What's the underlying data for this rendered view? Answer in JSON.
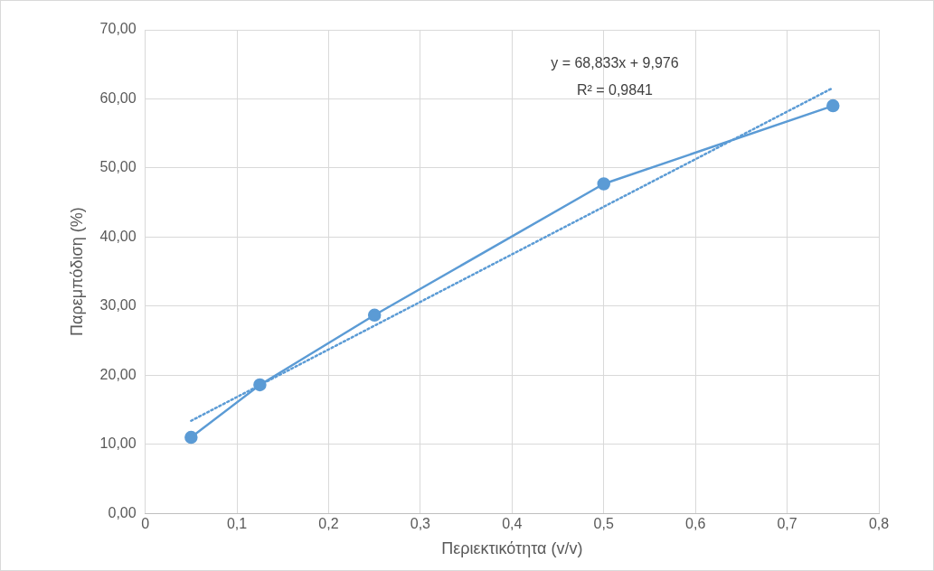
{
  "chart_data": {
    "type": "scatter",
    "xlabel": "Περιεκτικότητα (v/v)",
    "ylabel": "Παρεμπόδιση (%)",
    "xlim": [
      0,
      0.8
    ],
    "xticks": [
      0,
      {
        "value": 0.1,
        "label": "0,1"
      },
      {
        "value": 0.2,
        "label": "0,2"
      },
      {
        "value": 0.3,
        "label": "0,3"
      },
      {
        "value": 0.4,
        "label": "0,4"
      },
      {
        "value": 0.5,
        "label": "0,5"
      },
      {
        "value": 0.6,
        "label": "0,6"
      },
      {
        "value": 0.7,
        "label": "0,7"
      },
      {
        "value": 0.8,
        "label": "0,8"
      }
    ],
    "ylim": [
      0,
      70
    ],
    "yticks": [
      {
        "value": 0,
        "label": "0,00"
      },
      {
        "value": 10,
        "label": "10,00"
      },
      {
        "value": 20,
        "label": "20,00"
      },
      {
        "value": 30,
        "label": "30,00"
      },
      {
        "value": 40,
        "label": "40,00"
      },
      {
        "value": 50,
        "label": "50,00"
      },
      {
        "value": 60,
        "label": "60,00"
      },
      {
        "value": 70,
        "label": "70,00"
      }
    ],
    "grid": true,
    "legend": false,
    "series": [
      {
        "type": "line",
        "color": "#5b9bd5",
        "x": [
          0.05,
          0.125,
          0.25,
          0.5,
          0.75
        ],
        "values": [
          11.0,
          18.6,
          28.7,
          47.7,
          59.0
        ],
        "marker": "circle",
        "line_style": "solid"
      },
      {
        "type": "line",
        "color": "#5b9bd5",
        "x": [
          0.05,
          0.75
        ],
        "values": [
          13.4,
          61.6
        ],
        "marker": "none",
        "line_style": "dotted"
      }
    ],
    "annotations": [
      "y = 68,833x + 9,976",
      "R² = 0,9841"
    ]
  }
}
